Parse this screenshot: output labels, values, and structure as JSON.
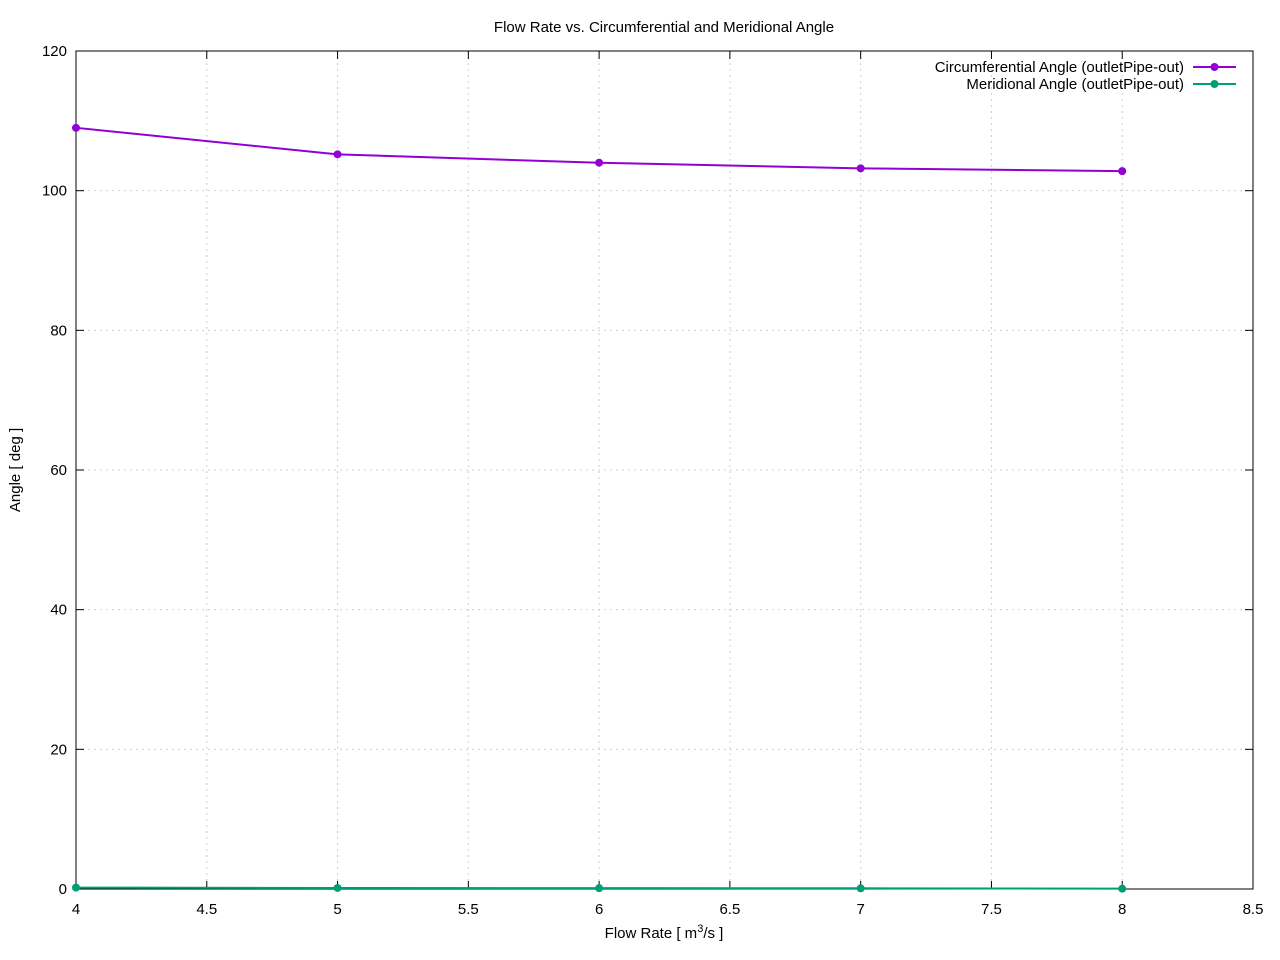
{
  "chart_data": {
    "type": "line",
    "title": "Flow Rate vs. Circumferential and Meridional Angle",
    "xlabel_main": "Flow Rate [ m",
    "xlabel_sup": "3",
    "xlabel_tail": "/s ]",
    "ylabel": "Angle [ deg ]",
    "xlim": [
      4,
      8.5
    ],
    "ylim": [
      0,
      120
    ],
    "x_ticks": [
      4,
      4.5,
      5,
      5.5,
      6,
      6.5,
      7,
      7.5,
      8,
      8.5
    ],
    "x_tick_labels": [
      "4",
      "4.5",
      "5",
      "5.5",
      "6",
      "6.5",
      "7",
      "7.5",
      "8",
      "8.5"
    ],
    "y_ticks": [
      0,
      20,
      40,
      60,
      80,
      100,
      120
    ],
    "y_tick_labels": [
      "0",
      "20",
      "40",
      "60",
      "80",
      "100",
      "120"
    ],
    "grid": true,
    "legend_position": "top-right",
    "series": [
      {
        "name": "Circumferential Angle (outletPipe-out)",
        "color": "#9400d3",
        "x": [
          4,
          5,
          6,
          7,
          8
        ],
        "y": [
          109.0,
          105.2,
          104.0,
          103.2,
          102.8
        ]
      },
      {
        "name": "Meridional Angle (outletPipe-out)",
        "color": "#009e73",
        "x": [
          4,
          5,
          6,
          7,
          8
        ],
        "y": [
          0.2,
          0.15,
          0.12,
          0.1,
          0.05
        ]
      }
    ]
  }
}
